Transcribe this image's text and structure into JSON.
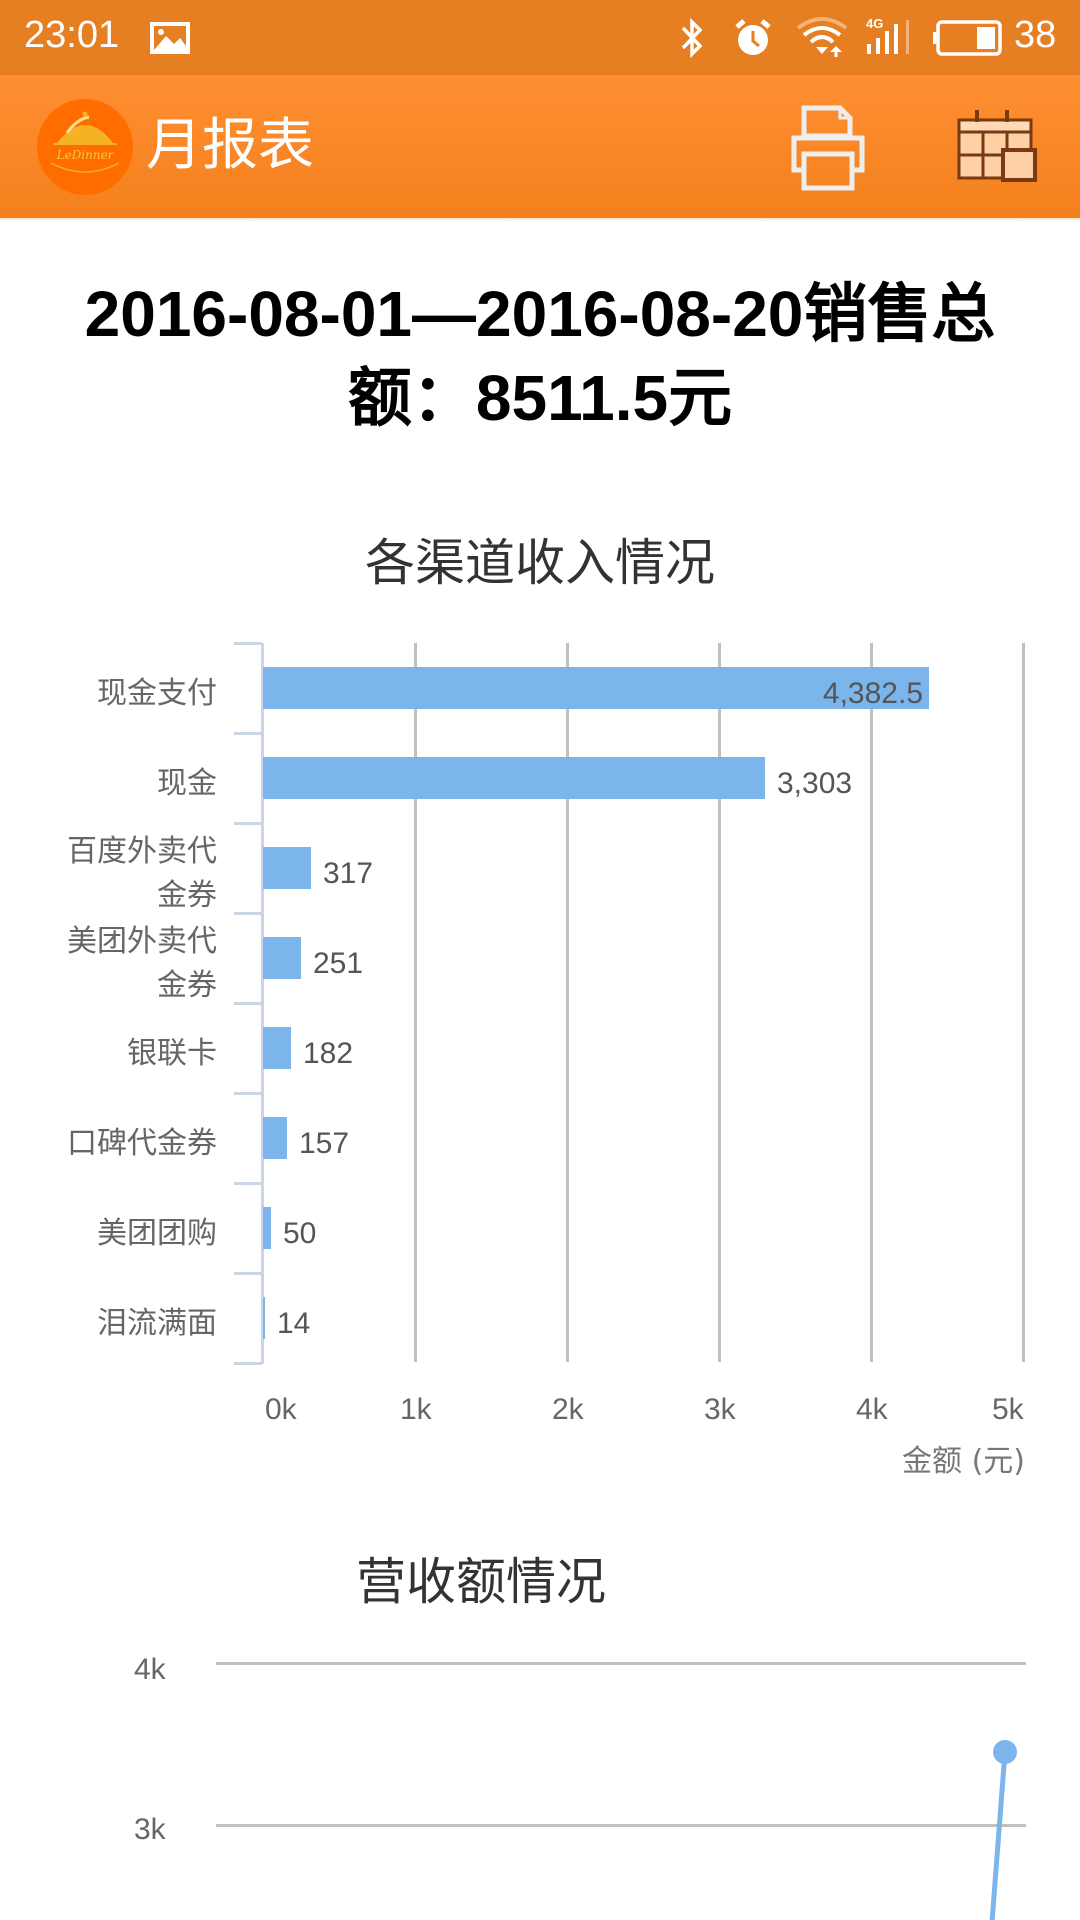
{
  "status_bar": {
    "time": "23:01",
    "battery_level": "38",
    "icons": [
      "image-icon",
      "bluetooth-icon",
      "alarm-icon",
      "wifi-icon",
      "signal-4g-icon",
      "battery-icon"
    ]
  },
  "toolbar": {
    "logo_text": "LeDinner",
    "title": "月报表",
    "print_icon": "printer-icon",
    "calendar_icon": "calendar-icon",
    "colors": {
      "status_bar": "#E67E22",
      "toolbar": "#FF8A2C",
      "logo_bg": "#FF6D00"
    }
  },
  "summary": {
    "line1": "2016-08-01—2016-08-20销售总",
    "line2": "额：8511.5元"
  },
  "chart_data": [
    {
      "type": "bar",
      "orientation": "horizontal",
      "title": "各渠道收入情况",
      "categories": [
        "现金支付",
        "现金",
        "百度外卖代金券",
        "美团外卖代金券",
        "银联卡",
        "口碑代金券",
        "美团团购",
        "泪流满面"
      ],
      "category_display": [
        [
          "现金支付"
        ],
        [
          "现金"
        ],
        [
          "百度外卖代",
          "金券"
        ],
        [
          "美团外卖代",
          "金券"
        ],
        [
          "银联卡"
        ],
        [
          "口碑代金券"
        ],
        [
          "美团团购"
        ],
        [
          "泪流满面"
        ]
      ],
      "values": [
        4382.5,
        3303,
        317,
        251,
        182,
        157,
        50,
        14
      ],
      "value_labels": [
        "4,382.5",
        "3,303",
        "317",
        "251",
        "182",
        "157",
        "50",
        "14"
      ],
      "xlabel": "金额 (元)",
      "ylabel": "",
      "xlim": [
        0,
        5000
      ],
      "x_ticks": [
        "0k",
        "1k",
        "2k",
        "3k",
        "4k",
        "5k"
      ],
      "grid": true,
      "bar_color": "#7CB5EC",
      "legend": "none"
    },
    {
      "type": "line",
      "title": "营收额情况",
      "y_ticks_visible": [
        "4k",
        "3k"
      ],
      "ylim_visible": [
        3000,
        4000
      ],
      "series": [
        {
          "name": "营收额",
          "color": "#7CB5EC",
          "last_point_value_approx": 3450
        }
      ],
      "grid": true,
      "note": "chart cut off at bottom of screen; only the last data point is visible"
    }
  ],
  "labels": {
    "chart1_title": "各渠道收入情况",
    "chart1_xaxis_title": "金额 (元)",
    "chart2_title": "营收额情况",
    "chart2_y_4k": "4k",
    "chart2_y_3k": "3k"
  }
}
